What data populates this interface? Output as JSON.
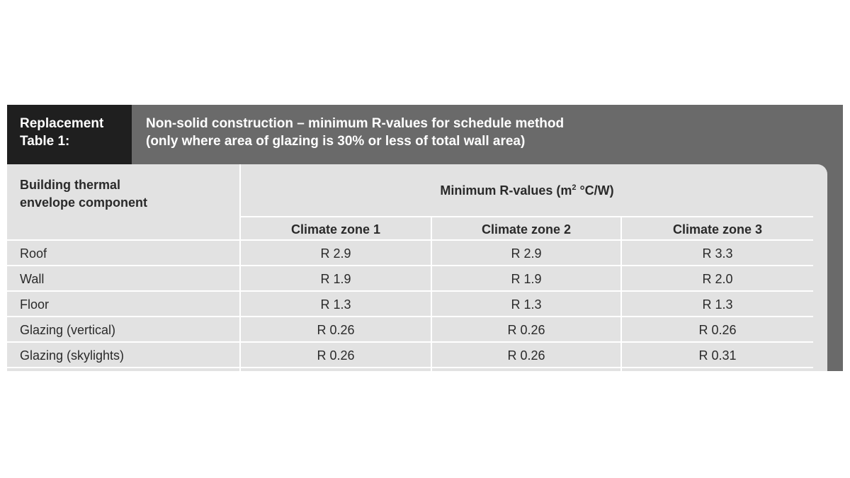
{
  "header": {
    "label_line1": "Replacement",
    "label_line2": "Table 1:",
    "title_line1": "Non-solid construction – minimum R-values for schedule method",
    "title_line2": "(only where area of glazing is 30% or less of total wall area)"
  },
  "table": {
    "component_header_line1": "Building thermal",
    "component_header_line2": "envelope component",
    "group_header_text": "Minimum R-values (m",
    "group_header_sup": "2",
    "group_header_tail": " °C/W)",
    "zones": [
      "Climate zone 1",
      "Climate zone 2",
      "Climate zone 3"
    ],
    "rows": [
      {
        "component": "Roof",
        "values": [
          "R 2.9",
          "R 2.9",
          "R 3.3"
        ]
      },
      {
        "component": "Wall",
        "values": [
          "R 1.9",
          "R 1.9",
          "R 2.0"
        ]
      },
      {
        "component": "Floor",
        "values": [
          "R 1.3",
          "R 1.3",
          "R 1.3"
        ]
      },
      {
        "component": "Glazing (vertical)",
        "values": [
          "R 0.26",
          "R 0.26",
          "R 0.26"
        ]
      },
      {
        "component": "Glazing (skylights)",
        "values": [
          "R 0.26",
          "R 0.26",
          "R 0.31"
        ]
      }
    ]
  }
}
